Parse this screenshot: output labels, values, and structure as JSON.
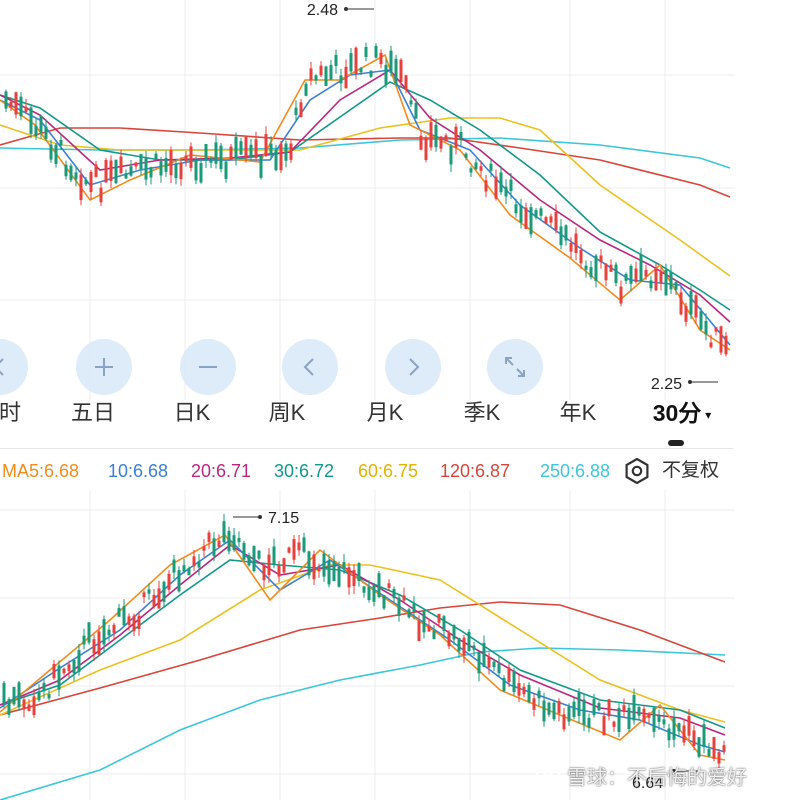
{
  "colors": {
    "up": "#e8413d",
    "down": "#1a9a78",
    "ma5": "#f28b1c",
    "ma10": "#3a7fd5",
    "ma20": "#b8277f",
    "ma30": "#12988a",
    "ma60": "#e9c21f",
    "ma120": "#d9453a",
    "ma250": "#3cc6d9",
    "grid": "#ececec",
    "button_bg": "#dae8f8",
    "button_icon": "#8aa3c2"
  },
  "top_chart": {
    "high_label": "2.48",
    "low_label": "2.25"
  },
  "bottom_chart": {
    "high_label": "7.15",
    "low_label": "6.64"
  },
  "controls": {
    "buttons": [
      {
        "name": "scroll-left-button",
        "icon": "chevron-left-icon"
      },
      {
        "name": "zoom-in-button",
        "icon": "plus-icon"
      },
      {
        "name": "zoom-out-button",
        "icon": "minus-icon"
      },
      {
        "name": "move-left-button",
        "icon": "chevron-left-icon"
      },
      {
        "name": "move-right-button",
        "icon": "chevron-right-icon"
      },
      {
        "name": "fullscreen-button",
        "icon": "expand-icon"
      }
    ]
  },
  "periods": {
    "items": [
      {
        "label": "时",
        "active": false
      },
      {
        "label": "五日",
        "active": false
      },
      {
        "label": "日K",
        "active": false
      },
      {
        "label": "周K",
        "active": false
      },
      {
        "label": "月K",
        "active": false
      },
      {
        "label": "季K",
        "active": false
      },
      {
        "label": "年K",
        "active": false
      },
      {
        "label": "30分",
        "active": true
      }
    ],
    "active_caret": "▾"
  },
  "ma_legend": {
    "items": [
      {
        "text": "MA5:6.68",
        "color": "#f28b1c"
      },
      {
        "text": "10:6.68",
        "color": "#3a7fd5"
      },
      {
        "text": "20:6.71",
        "color": "#b8277f"
      },
      {
        "text": "30:6.72",
        "color": "#12988a"
      },
      {
        "text": "60:6.75",
        "color": "#e9c21f"
      },
      {
        "text": "120:6.87",
        "color": "#d9453a"
      },
      {
        "text": "250:6.88",
        "color": "#3cc6d9"
      }
    ],
    "mode_label": "不复权",
    "settings_icon": "gear-icon"
  },
  "watermark": {
    "text": "雪球：不后悔的爱好",
    "icon": "snowball-logo-icon"
  }
}
